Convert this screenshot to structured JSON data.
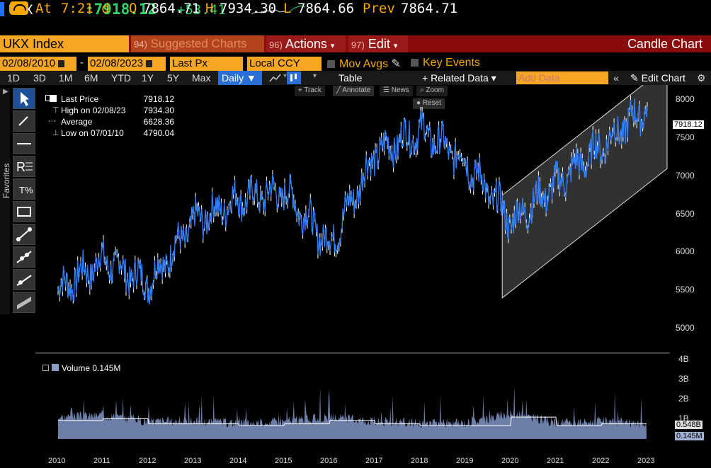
{
  "header": {
    "ticker": "UKX",
    "last": "↑7918.12",
    "change": "+53.41",
    "time_label": "At",
    "time_value": "7:21 d",
    "open_label": "O",
    "open_value": "7864.71",
    "high_label": "H",
    "high_value": "7934.30",
    "low_label": "L",
    "low_value": "7864.66",
    "prev_label": "Prev",
    "prev_value": "7864.71"
  },
  "menubar": {
    "security": "UKX Index",
    "suggested_num": "94)",
    "suggested": "Suggested Charts",
    "actions_num": "96)",
    "actions": "Actions",
    "edit_num": "97)",
    "edit": "Edit",
    "title": "Candle Chart"
  },
  "daterow": {
    "start": "02/08/2010",
    "sep": "-",
    "end": "02/08/2023",
    "field": "Last Px",
    "currency": "Local CCY",
    "mov_avgs": "Mov Avgs",
    "key_events": "Key Events"
  },
  "toolbar": {
    "periods": [
      "1D",
      "3D",
      "1M",
      "6M",
      "YTD",
      "1Y",
      "5Y",
      "Max"
    ],
    "frequency": "Daily ▼",
    "table": "Table",
    "related": "+ Related Data ▾",
    "add_data_placeholder": "Add Data",
    "edit_chart": "Edit Chart"
  },
  "mini_controls": {
    "track": "Track",
    "annotate": "Annotate",
    "news": "News",
    "zoom": "Zoom",
    "reset": "Reset"
  },
  "sidebar": {
    "favorites": "Favorites"
  },
  "legend": {
    "items": [
      {
        "label": "Last Price",
        "value": "7918.12"
      },
      {
        "label": "High on 02/08/23",
        "value": "7934.30"
      },
      {
        "label": "Average",
        "value": "6628.36"
      },
      {
        "label": "Low on 07/01/10",
        "value": "4790.04"
      }
    ]
  },
  "volume": {
    "label": "Volume 0.145M",
    "tag_avg": "0.548B",
    "tag_last": "0.145M"
  },
  "price_tag": "7918.12",
  "colors": {
    "accent": "#f5a623",
    "up": "#2fd36b",
    "candle": "#2f7fff",
    "menubar": "#8a0b0b",
    "channel": "#5a5a5a"
  },
  "chart_data": [
    {
      "type": "line",
      "title": "",
      "x": [
        "2010",
        "2011",
        "2012",
        "2013",
        "2014",
        "2015",
        "2016",
        "2017",
        "2018",
        "2019",
        "2020",
        "2021",
        "2022",
        "2023"
      ],
      "series": [
        {
          "name": "Last Price",
          "values": [
            5500,
            5900,
            5600,
            6400,
            6700,
            6800,
            6100,
            7300,
            7600,
            7200,
            6400,
            6900,
            7400,
            7918.12
          ]
        }
      ],
      "ylim": [
        4700,
        8200
      ],
      "yticks": [
        5000,
        5500,
        6000,
        6500,
        7000,
        7500,
        8000
      ],
      "grid": false
    },
    {
      "type": "area",
      "title": "",
      "x": [
        "2010",
        "2011",
        "2012",
        "2013",
        "2014",
        "2015",
        "2016",
        "2017",
        "2018",
        "2019",
        "2020",
        "2021",
        "2022",
        "2023"
      ],
      "series": [
        {
          "name": "Volume",
          "values": [
            1.1,
            1.2,
            0.9,
            0.9,
            0.8,
            0.9,
            1.1,
            0.9,
            0.8,
            0.8,
            1.3,
            0.8,
            0.9,
            0.7
          ]
        }
      ],
      "ylim": [
        0,
        4
      ],
      "yticks": [
        "1B",
        "2B",
        "3B",
        "4B"
      ]
    }
  ]
}
